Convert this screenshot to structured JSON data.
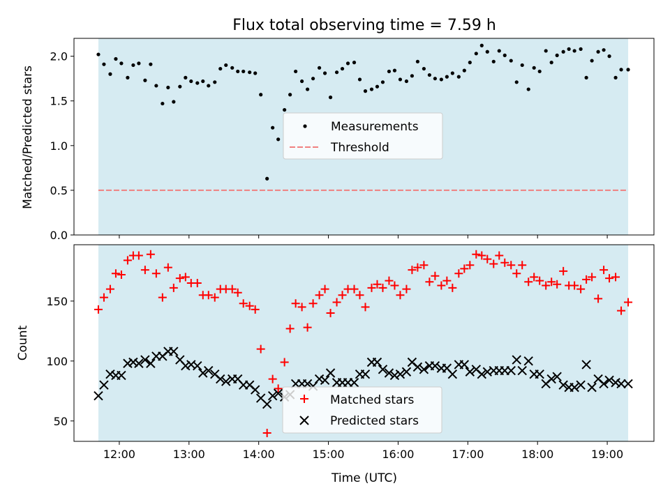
{
  "title": "Flux total observing time = 7.59 h",
  "colors": {
    "band": "#add8e6",
    "measurement": "#000000",
    "threshold": "#f08080",
    "matched": "#ff0000",
    "predicted": "#000000"
  },
  "chart_data": [
    {
      "type": "scatter",
      "title": "Flux total observing time = 7.59 h",
      "xlabel": "",
      "ylabel": "Matched/Predicted stars",
      "xlim": [
        11.35,
        19.67
      ],
      "ylim": [
        0,
        2.2
      ],
      "yticks": [
        0.0,
        0.5,
        1.0,
        1.5,
        2.0
      ],
      "ytick_labels": [
        "0.0",
        "0.5",
        "1.0",
        "1.5",
        "2.0"
      ],
      "xticks": [
        12,
        13,
        14,
        15,
        16,
        17,
        18,
        19
      ],
      "xtick_labels": [],
      "observing_band": [
        11.7,
        19.3
      ],
      "legend": "center",
      "series": [
        {
          "name": "Measurements",
          "marker": "dot",
          "x": [
            11.7,
            11.78,
            11.87,
            11.95,
            12.03,
            12.12,
            12.2,
            12.28,
            12.37,
            12.45,
            12.53,
            12.62,
            12.7,
            12.78,
            12.87,
            12.95,
            13.03,
            13.12,
            13.2,
            13.28,
            13.37,
            13.45,
            13.53,
            13.62,
            13.7,
            13.78,
            13.87,
            13.95,
            14.03,
            14.12,
            14.2,
            14.28,
            14.37,
            14.45,
            14.53,
            14.62,
            14.7,
            14.78,
            14.87,
            14.95,
            15.03,
            15.12,
            15.2,
            15.28,
            15.37,
            15.45,
            15.53,
            15.62,
            15.7,
            15.78,
            15.87,
            15.95,
            16.03,
            16.12,
            16.2,
            16.28,
            16.37,
            16.45,
            16.53,
            16.62,
            16.7,
            16.78,
            16.87,
            16.95,
            17.03,
            17.12,
            17.2,
            17.28,
            17.37,
            17.45,
            17.53,
            17.62,
            17.7,
            17.78,
            17.87,
            17.95,
            18.03,
            18.12,
            18.2,
            18.28,
            18.37,
            18.45,
            18.53,
            18.62,
            18.7,
            18.78,
            18.87,
            18.95,
            19.03,
            19.12,
            19.2,
            19.3
          ],
          "y": [
            2.02,
            1.91,
            1.8,
            1.97,
            1.92,
            1.76,
            1.9,
            1.92,
            1.73,
            1.91,
            1.67,
            1.47,
            1.65,
            1.49,
            1.66,
            1.76,
            1.72,
            1.7,
            1.72,
            1.67,
            1.71,
            1.86,
            1.9,
            1.87,
            1.83,
            1.83,
            1.82,
            1.81,
            1.57,
            0.63,
            1.2,
            1.07,
            1.4,
            1.57,
            1.83,
            1.72,
            1.63,
            1.75,
            1.87,
            1.81,
            1.54,
            1.82,
            1.86,
            1.92,
            1.93,
            1.74,
            1.61,
            1.63,
            1.66,
            1.71,
            1.83,
            1.84,
            1.74,
            1.72,
            1.78,
            1.94,
            1.86,
            1.79,
            1.75,
            1.74,
            1.77,
            1.81,
            1.77,
            1.84,
            1.93,
            2.03,
            2.12,
            2.05,
            1.94,
            2.06,
            2.01,
            1.95,
            1.71,
            1.9,
            1.63,
            1.87,
            1.83,
            2.06,
            1.93,
            2.01,
            2.05,
            2.08,
            2.06,
            2.08,
            1.76,
            1.95,
            2.05,
            2.07,
            2.0,
            1.76,
            1.85,
            1.85
          ]
        },
        {
          "name": "Threshold",
          "marker": "dashed-line",
          "x": [
            11.7,
            19.3
          ],
          "y": [
            0.5,
            0.5
          ]
        }
      ]
    },
    {
      "type": "scatter",
      "xlabel": "Time (UTC)",
      "ylabel": "Count",
      "xlim": [
        11.35,
        19.67
      ],
      "ylim": [
        33,
        197
      ],
      "yticks": [
        50,
        100,
        150
      ],
      "ytick_labels": [
        "50",
        "100",
        "150"
      ],
      "xticks": [
        12,
        13,
        14,
        15,
        16,
        17,
        18,
        19
      ],
      "xtick_labels": [
        "12:00",
        "13:00",
        "14:00",
        "15:00",
        "16:00",
        "17:00",
        "18:00",
        "19:00"
      ],
      "observing_band": [
        11.7,
        19.3
      ],
      "legend": "lower center",
      "series": [
        {
          "name": "Matched stars",
          "marker": "plus",
          "x": [
            11.7,
            11.78,
            11.87,
            11.95,
            12.03,
            12.12,
            12.2,
            12.28,
            12.37,
            12.45,
            12.53,
            12.62,
            12.7,
            12.78,
            12.87,
            12.95,
            13.03,
            13.12,
            13.2,
            13.28,
            13.37,
            13.45,
            13.53,
            13.62,
            13.7,
            13.78,
            13.87,
            13.95,
            14.03,
            14.12,
            14.2,
            14.28,
            14.37,
            14.45,
            14.53,
            14.62,
            14.7,
            14.78,
            14.87,
            14.95,
            15.03,
            15.12,
            15.2,
            15.28,
            15.37,
            15.45,
            15.53,
            15.62,
            15.7,
            15.78,
            15.87,
            15.95,
            16.03,
            16.12,
            16.2,
            16.28,
            16.37,
            16.45,
            16.53,
            16.62,
            16.7,
            16.78,
            16.87,
            16.95,
            17.03,
            17.12,
            17.2,
            17.28,
            17.37,
            17.45,
            17.53,
            17.62,
            17.7,
            17.78,
            17.87,
            17.95,
            18.03,
            18.12,
            18.2,
            18.28,
            18.37,
            18.45,
            18.53,
            18.62,
            18.7,
            18.78,
            18.87,
            18.95,
            19.03,
            19.12,
            19.2,
            19.3
          ],
          "y": [
            143,
            153,
            160,
            173,
            172,
            184,
            188,
            188,
            176,
            189,
            173,
            153,
            178,
            161,
            169,
            170,
            165,
            165,
            155,
            155,
            153,
            160,
            160,
            160,
            157,
            148,
            146,
            143,
            110,
            40,
            85,
            77,
            99,
            127,
            148,
            145,
            128,
            148,
            155,
            160,
            140,
            149,
            155,
            160,
            160,
            155,
            145,
            161,
            164,
            161,
            167,
            163,
            155,
            160,
            176,
            178,
            180,
            166,
            171,
            163,
            167,
            161,
            173,
            177,
            180,
            189,
            188,
            185,
            181,
            188,
            182,
            180,
            173,
            180,
            166,
            170,
            167,
            163,
            166,
            164,
            175,
            163,
            163,
            160,
            168,
            170,
            152,
            176,
            169,
            170,
            142,
            149
          ]
        },
        {
          "name": "Predicted stars",
          "marker": "x",
          "x": [
            11.7,
            11.78,
            11.87,
            11.95,
            12.03,
            12.12,
            12.2,
            12.28,
            12.37,
            12.45,
            12.53,
            12.62,
            12.7,
            12.78,
            12.87,
            12.95,
            13.03,
            13.12,
            13.2,
            13.28,
            13.37,
            13.45,
            13.53,
            13.62,
            13.7,
            13.78,
            13.87,
            13.95,
            14.03,
            14.12,
            14.2,
            14.28,
            14.37,
            14.45,
            14.53,
            14.62,
            14.7,
            14.78,
            14.87,
            14.95,
            15.03,
            15.12,
            15.2,
            15.28,
            15.37,
            15.45,
            15.53,
            15.62,
            15.7,
            15.78,
            15.87,
            15.95,
            16.03,
            16.12,
            16.2,
            16.28,
            16.37,
            16.45,
            16.53,
            16.62,
            16.7,
            16.78,
            16.87,
            16.95,
            17.03,
            17.12,
            17.2,
            17.28,
            17.37,
            17.45,
            17.53,
            17.62,
            17.7,
            17.78,
            17.87,
            17.95,
            18.03,
            18.12,
            18.2,
            18.28,
            18.37,
            18.45,
            18.53,
            18.62,
            18.7,
            18.78,
            18.87,
            18.95,
            19.03,
            19.12,
            19.2,
            19.3
          ],
          "y": [
            71,
            80,
            89,
            88,
            88,
            98,
            99,
            98,
            101,
            98,
            104,
            104,
            108,
            108,
            101,
            96,
            97,
            96,
            90,
            92,
            89,
            85,
            83,
            85,
            85,
            80,
            80,
            76,
            69,
            64,
            71,
            73,
            70,
            72,
            81,
            81,
            81,
            79,
            85,
            84,
            90,
            82,
            82,
            82,
            82,
            89,
            89,
            99,
            99,
            93,
            90,
            88,
            89,
            91,
            99,
            95,
            93,
            96,
            96,
            94,
            94,
            89,
            97,
            97,
            91,
            93,
            89,
            91,
            92,
            92,
            92,
            92,
            101,
            92,
            100,
            89,
            89,
            81,
            85,
            87,
            80,
            78,
            78,
            80,
            97,
            78,
            85,
            81,
            84,
            82,
            81,
            81
          ]
        }
      ]
    }
  ]
}
